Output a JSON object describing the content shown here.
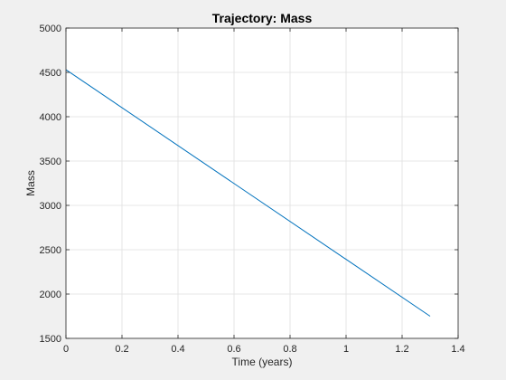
{
  "chart_data": {
    "type": "line",
    "title": "Trajectory: Mass",
    "xlabel": "Time (years)",
    "ylabel": "Mass",
    "xlim": [
      0,
      1.4
    ],
    "ylim": [
      1500,
      5000
    ],
    "xticks": [
      0,
      0.2,
      0.4,
      0.6,
      0.8,
      1,
      1.2,
      1.4
    ],
    "xtick_labels": [
      "0",
      "0.2",
      "0.4",
      "0.6",
      "0.8",
      "1",
      "1.2",
      "1.4"
    ],
    "yticks": [
      1500,
      2000,
      2500,
      3000,
      3500,
      4000,
      4500,
      5000
    ],
    "ytick_labels": [
      "1500",
      "2000",
      "2500",
      "3000",
      "3500",
      "4000",
      "4500",
      "5000"
    ],
    "grid": true,
    "legend": "none",
    "series": [
      {
        "color": "#0072BD",
        "x": [
          0,
          1.3
        ],
        "y": [
          4530,
          1750
        ]
      }
    ]
  }
}
